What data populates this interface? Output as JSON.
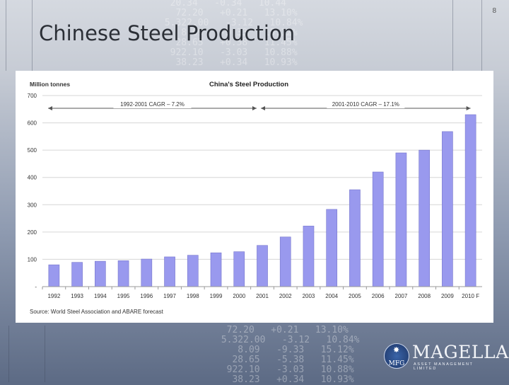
{
  "slide": {
    "page_number": "8",
    "title": "Chinese Steel Production"
  },
  "chart_data": {
    "type": "bar",
    "title": "China's Steel Production",
    "ylabel": "Million tonnes",
    "xlabel": "",
    "ylim": [
      0,
      700
    ],
    "yticks": [
      "-",
      "100",
      "200",
      "300",
      "400",
      "500",
      "600",
      "700"
    ],
    "ytick_values": [
      0,
      100,
      200,
      300,
      400,
      500,
      600,
      700
    ],
    "categories": [
      "1992",
      "1993",
      "1994",
      "1995",
      "1996",
      "1997",
      "1998",
      "1999",
      "2000",
      "2001",
      "2002",
      "2003",
      "2004",
      "2005",
      "2006",
      "2007",
      "2008",
      "2009",
      "2010 F"
    ],
    "values": [
      80,
      89,
      93,
      95,
      101,
      109,
      115,
      124,
      128,
      151,
      182,
      222,
      283,
      355,
      420,
      490,
      500,
      568,
      630
    ],
    "bar_color": "#9999ee",
    "annotations": [
      {
        "label": "1992-2001 CAGR – 7.2%",
        "from": "1992",
        "to": "2001"
      },
      {
        "label": "2001-2010 CAGR – 17.1%",
        "from": "2001",
        "to": "2010 F"
      }
    ],
    "source": "Source: World Steel Association and ABARE forecast",
    "grid": true
  },
  "logo": {
    "seal_text": "MFG",
    "name": "MAGELLAN",
    "subtitle": "ASSET MANAGEMENT LIMITED"
  }
}
